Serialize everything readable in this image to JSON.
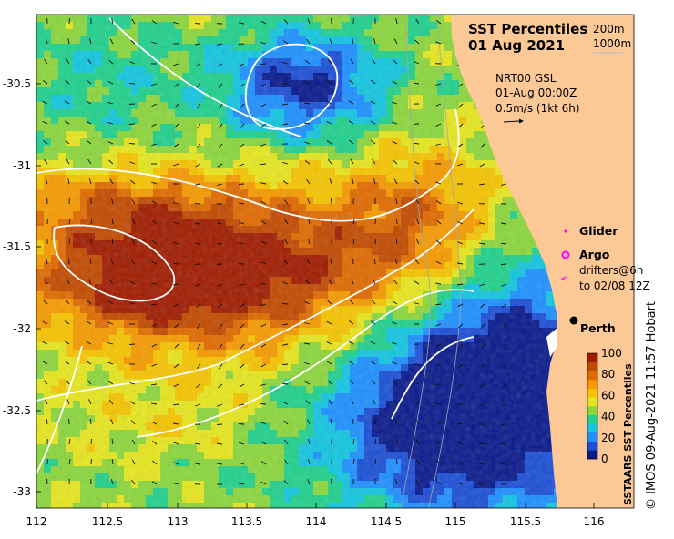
{
  "title": {
    "line1": "SST Percentiles",
    "line2": "01 Aug 2021"
  },
  "depth_legend": {
    "contour1": "200m",
    "contour2": "1000m"
  },
  "current_info": {
    "line1": "NRT00 GSL",
    "line2": "01-Aug 00:00Z",
    "line3": "0.5m/s (1kt 6h)"
  },
  "symbols": {
    "glider": "Glider",
    "argo": "Argo",
    "drifters_line1": "drifters@6h",
    "drifters_line2": "to 02/08 12Z"
  },
  "place": {
    "perth": "Perth"
  },
  "colorbar": {
    "title": "SSTAARS SST Percentiles",
    "ticks": [
      "0",
      "20",
      "40",
      "60",
      "80",
      "100"
    ],
    "colors": [
      "#0a1a8c",
      "#1c4fd6",
      "#1e90ff",
      "#12c5e0",
      "#20d08c",
      "#8bd63c",
      "#e6e61e",
      "#f5c400",
      "#f59a00",
      "#e06a00",
      "#c24a00",
      "#a01c00"
    ]
  },
  "axes": {
    "x_ticks": [
      "112",
      "112.5",
      "113",
      "113.5",
      "114",
      "114.5",
      "115",
      "115.5",
      "116"
    ],
    "y_ticks": [
      "-30.5",
      "-31",
      "-31.5",
      "-32",
      "-32.5",
      "-33"
    ]
  },
  "colors": {
    "land": "#fcc896",
    "glider_marker": "#ff00ff",
    "argo_marker": "#ff00ff"
  },
  "credit": "© IMOS 09-Aug-2021 11:57 Hobart"
}
